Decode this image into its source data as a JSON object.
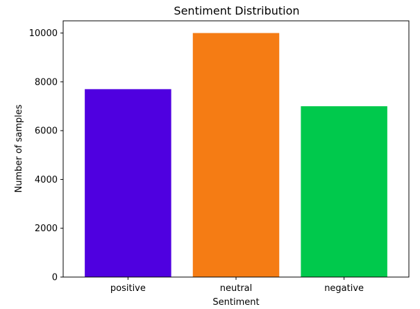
{
  "chart_data": {
    "type": "bar",
    "title": "Sentiment Distribution",
    "xlabel": "Sentiment",
    "ylabel": "Number of samples",
    "categories": [
      "positive",
      "neutral",
      "negative"
    ],
    "values": [
      7700,
      10000,
      7000
    ],
    "colors": [
      "#4f00e0",
      "#f57c14",
      "#00c94c"
    ],
    "ylim": [
      0,
      10500
    ],
    "yticks": [
      0,
      2000,
      4000,
      6000,
      8000,
      10000
    ],
    "grid": false,
    "legend": "none"
  }
}
